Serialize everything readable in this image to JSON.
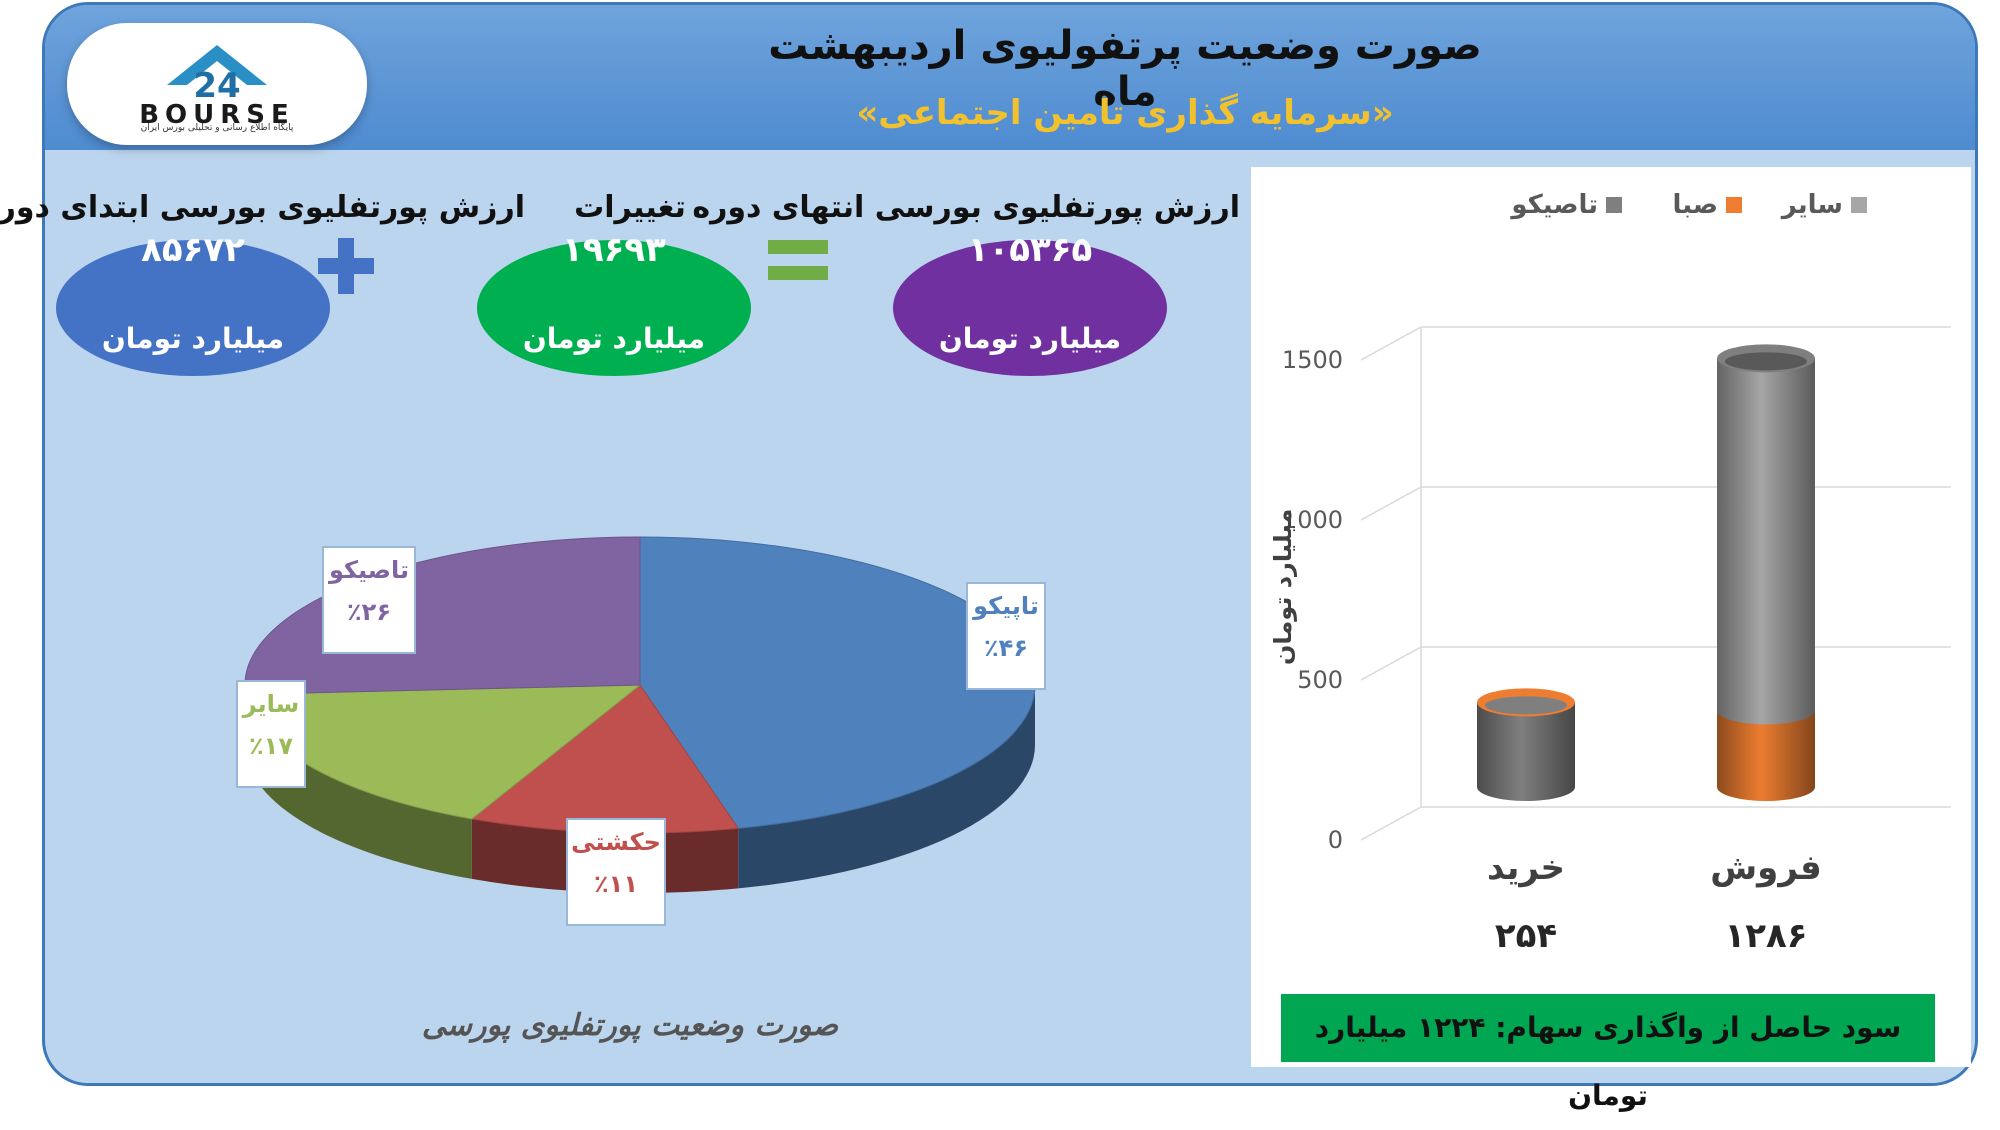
{
  "header": {
    "title": "صورت وضعیت پرتفولیوی اردیبهشت ماه",
    "subtitle": "«سرمایه گذاری تامین اجتماعی»",
    "logo_text": "BOURSE",
    "logo_number": "24",
    "logo_subtext": "پایگاه اطلاع رسانی و تحلیلی بورس ایران"
  },
  "summary": {
    "start_label": "ارزش پورتفلیوی بورسی ابتدای دوره",
    "start_value": "۸۵۶۷۲",
    "change_label": "تغییرات",
    "change_value": "۱۹۶۹۳",
    "end_label": "ارزش پورتفلیوی بورسی انتهای دوره",
    "end_value": "۱۰۵۳۶۵",
    "unit": "میلیارد تومان",
    "colors": {
      "start": "#4472c4",
      "change": "#00b050",
      "end": "#7030a0"
    }
  },
  "pie_caption": "صورت وضعیت پورتفلیوی پورسی",
  "profit_text": "سود حاصل از واگذاری سهام: ۱۲۲۴ میلیارد تومان",
  "chart_data": [
    {
      "type": "pie",
      "title": "صورت وضعیت پورتفلیوی پورسی",
      "categories": [
        "تاپیکو",
        "حکشتی",
        "سایر",
        "تاصیکو"
      ],
      "values": [
        46,
        11,
        17,
        26
      ],
      "value_labels": [
        "٪۴۶",
        "٪۱۱",
        "٪۱۷",
        "٪۲۶"
      ],
      "colors": [
        "#4f81bd",
        "#c0504d",
        "#9bbb59",
        "#8064a2"
      ]
    },
    {
      "type": "bar",
      "categories": [
        "خرید",
        "فروش"
      ],
      "totals": [
        "۲۵۴",
        "۱۲۸۶"
      ],
      "series": [
        {
          "name": "تاصیکو",
          "values": [
            254,
            0
          ],
          "color": "#7f7f7f"
        },
        {
          "name": "صبا",
          "values": [
            0,
            230
          ],
          "color": "#ed7d31"
        },
        {
          "name": "سایر",
          "values": [
            0,
            1056
          ],
          "color": "#a6a6a6"
        }
      ],
      "ylabel": "میلیارد تومان",
      "ylim": [
        0,
        1500
      ],
      "yticks": [
        "0",
        "500",
        "1000",
        "1500"
      ],
      "grid": true,
      "legend": "top"
    }
  ]
}
